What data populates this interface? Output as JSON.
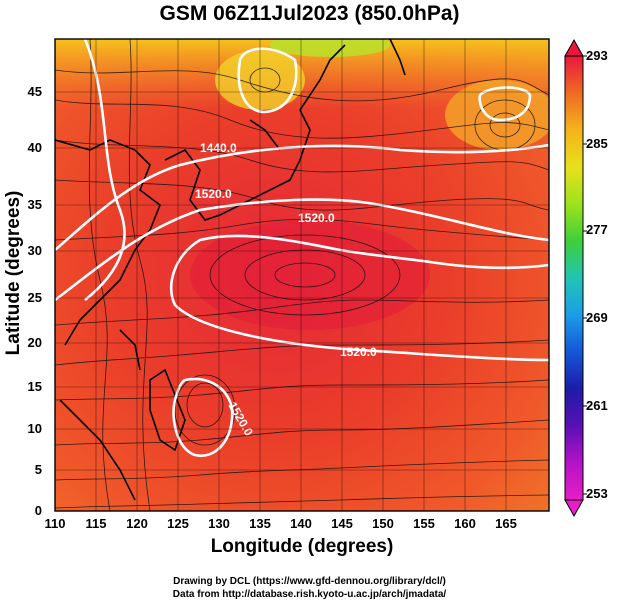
{
  "title": "GSM 06Z11Jul2023 (850.0hPa)",
  "ylabel": "Latitude  (degrees)",
  "xlabel": "Longitude (degrees)",
  "credits": [
    "Drawing by DCL (https://www.gfd-dennou.org/library/dcl/)",
    "Data from http://database.rish.kyoto-u.ac.jp/arch/jmadata/"
  ],
  "x_ticks": [
    "110",
    "115",
    "120",
    "125",
    "130",
    "135",
    "140",
    "145",
    "150",
    "155",
    "160",
    "165"
  ],
  "y_ticks": [
    "45",
    "40",
    "35",
    "30",
    "25",
    "20",
    "15",
    "10",
    "5",
    "0"
  ],
  "colorbar": {
    "ticks": [
      "293",
      "285",
      "277",
      "269",
      "261",
      "253"
    ],
    "colors": [
      "#e8183c",
      "#f06a24",
      "#f5b21a",
      "#e7e11c",
      "#9ee21c",
      "#3fcf3a",
      "#22c4b4",
      "#1a9ee6",
      "#1656d8",
      "#1c1ca8",
      "#5a10b6",
      "#b313c6",
      "#e81ec8"
    ]
  },
  "contour_labels": [
    "1440.0",
    "1520.0",
    "1520.0",
    "1520.0",
    "1520.0"
  ],
  "chart_data": {
    "type": "heatmap",
    "title": "GSM 06Z11Jul2023 (850.0hPa)",
    "xlabel": "Longitude (degrees)",
    "ylabel": "Latitude  (degrees)",
    "xlim": [
      110,
      170
    ],
    "ylim": [
      0,
      50
    ],
    "colorbar_range": [
      253,
      293
    ],
    "contours": [
      1440.0,
      1520.0
    ]
  }
}
